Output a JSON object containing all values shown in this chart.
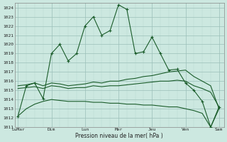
{
  "bg_color": "#cce8e0",
  "grid_major_color": "#aacccc",
  "grid_minor_color": "#ddeee8",
  "line_color": "#1a5c2a",
  "xtick_labels": [
    "LuMar",
    "Dim",
    "Lun",
    "Mer",
    "Jeu",
    "Ven",
    "Sam"
  ],
  "xtick_positions": [
    0,
    2,
    4,
    6,
    8,
    10,
    12
  ],
  "xlabel": "Pression niveau de la mer( hPa )",
  "ylim": [
    1011,
    1024.5
  ],
  "yticks": [
    1011,
    1012,
    1013,
    1014,
    1015,
    1016,
    1017,
    1018,
    1019,
    1020,
    1021,
    1022,
    1023,
    1024
  ],
  "series1_x": [
    0,
    0.5,
    1.0,
    1.5,
    2.0,
    2.5,
    3.0,
    3.5,
    4.0,
    4.5,
    5.0,
    5.5,
    6.0,
    6.5,
    7.0,
    7.5,
    8.0,
    8.5,
    9.0,
    9.5,
    10.0,
    10.5,
    11.0,
    11.5,
    12.0
  ],
  "series1_y": [
    1012.2,
    1015.5,
    1015.8,
    1014.1,
    1019.0,
    1020.0,
    1018.2,
    1019.0,
    1022.0,
    1023.0,
    1021.0,
    1021.5,
    1024.3,
    1023.8,
    1019.0,
    1019.2,
    1020.8,
    1019.0,
    1017.2,
    1017.3,
    1015.8,
    1015.0,
    1013.8,
    1011.0,
    1013.2
  ],
  "series2_x": [
    0,
    0.5,
    1.0,
    1.5,
    2.0,
    2.5,
    3.0,
    3.5,
    4.0,
    4.5,
    5.0,
    5.5,
    6.0,
    6.5,
    7.0,
    7.5,
    8.0,
    8.5,
    9.0,
    9.5,
    10.0,
    10.5,
    11.0,
    11.5,
    12.0
  ],
  "series2_y": [
    1015.5,
    1015.6,
    1015.8,
    1015.5,
    1015.8,
    1015.7,
    1015.5,
    1015.6,
    1015.7,
    1015.9,
    1015.8,
    1016.0,
    1016.0,
    1016.2,
    1016.3,
    1016.5,
    1016.6,
    1016.8,
    1017.0,
    1017.1,
    1017.2,
    1016.5,
    1016.0,
    1015.5,
    1013.0
  ],
  "series3_x": [
    0,
    0.5,
    1.0,
    1.5,
    2.0,
    2.5,
    3.0,
    3.5,
    4.0,
    4.5,
    5.0,
    5.5,
    6.0,
    6.5,
    7.0,
    7.5,
    8.0,
    8.5,
    9.0,
    9.5,
    10.0,
    10.5,
    11.0,
    11.5,
    12.0
  ],
  "series3_y": [
    1015.2,
    1015.3,
    1015.4,
    1015.2,
    1015.5,
    1015.4,
    1015.2,
    1015.3,
    1015.3,
    1015.5,
    1015.4,
    1015.5,
    1015.5,
    1015.6,
    1015.7,
    1015.8,
    1015.9,
    1016.0,
    1016.0,
    1016.1,
    1016.0,
    1015.5,
    1015.2,
    1014.8,
    1013.2
  ],
  "series4_x": [
    0,
    0.5,
    1.0,
    1.5,
    2.0,
    2.5,
    3.0,
    3.5,
    4.0,
    4.5,
    5.0,
    5.5,
    6.0,
    6.5,
    7.0,
    7.5,
    8.0,
    8.5,
    9.0,
    9.5,
    10.0,
    10.5,
    11.0,
    11.5,
    12.0
  ],
  "series4_y": [
    1012.2,
    1013.0,
    1013.5,
    1013.8,
    1014.0,
    1013.9,
    1013.8,
    1013.8,
    1013.8,
    1013.7,
    1013.7,
    1013.6,
    1013.6,
    1013.5,
    1013.5,
    1013.4,
    1013.4,
    1013.3,
    1013.2,
    1013.2,
    1013.0,
    1012.8,
    1012.5,
    1011.0,
    1013.0
  ]
}
